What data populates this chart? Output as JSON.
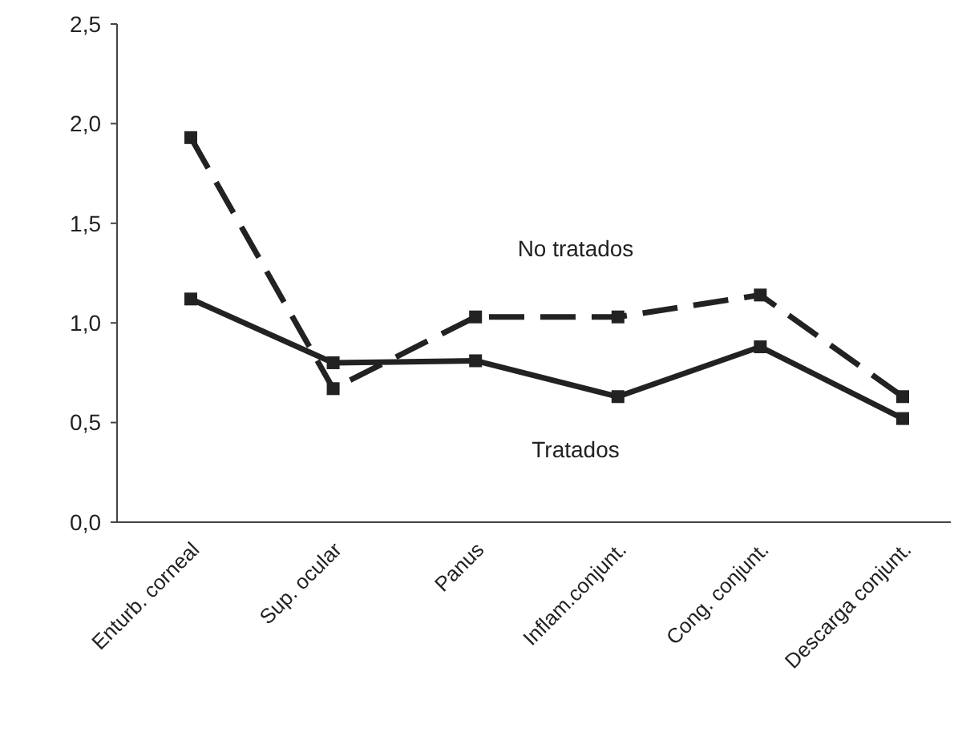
{
  "chart_data": {
    "type": "line",
    "categories": [
      "Enturb. corneal",
      "Sup. ocular",
      "Panus",
      "Inflam.conjunt.",
      "Cong. conjunt.",
      "Descarga conjunt."
    ],
    "series": [
      {
        "name": "No tratados",
        "color": "#222222",
        "line_style": "dashed",
        "values": [
          1.93,
          0.67,
          1.03,
          1.03,
          1.14,
          0.63
        ]
      },
      {
        "name": "Tratados",
        "color": "#222222",
        "line_style": "solid",
        "values": [
          1.12,
          0.8,
          0.81,
          0.63,
          0.88,
          0.52
        ]
      }
    ],
    "ylim": [
      0,
      2.5
    ],
    "yticks": [
      {
        "value": 0,
        "label": "0,0"
      },
      {
        "value": 0.5,
        "label": "0,5"
      },
      {
        "value": 1,
        "label": "1,0"
      },
      {
        "value": 1.5,
        "label": "1,5"
      },
      {
        "value": 2,
        "label": "2,0"
      },
      {
        "value": 2.5,
        "label": "2,5"
      }
    ],
    "marker": "square"
  }
}
